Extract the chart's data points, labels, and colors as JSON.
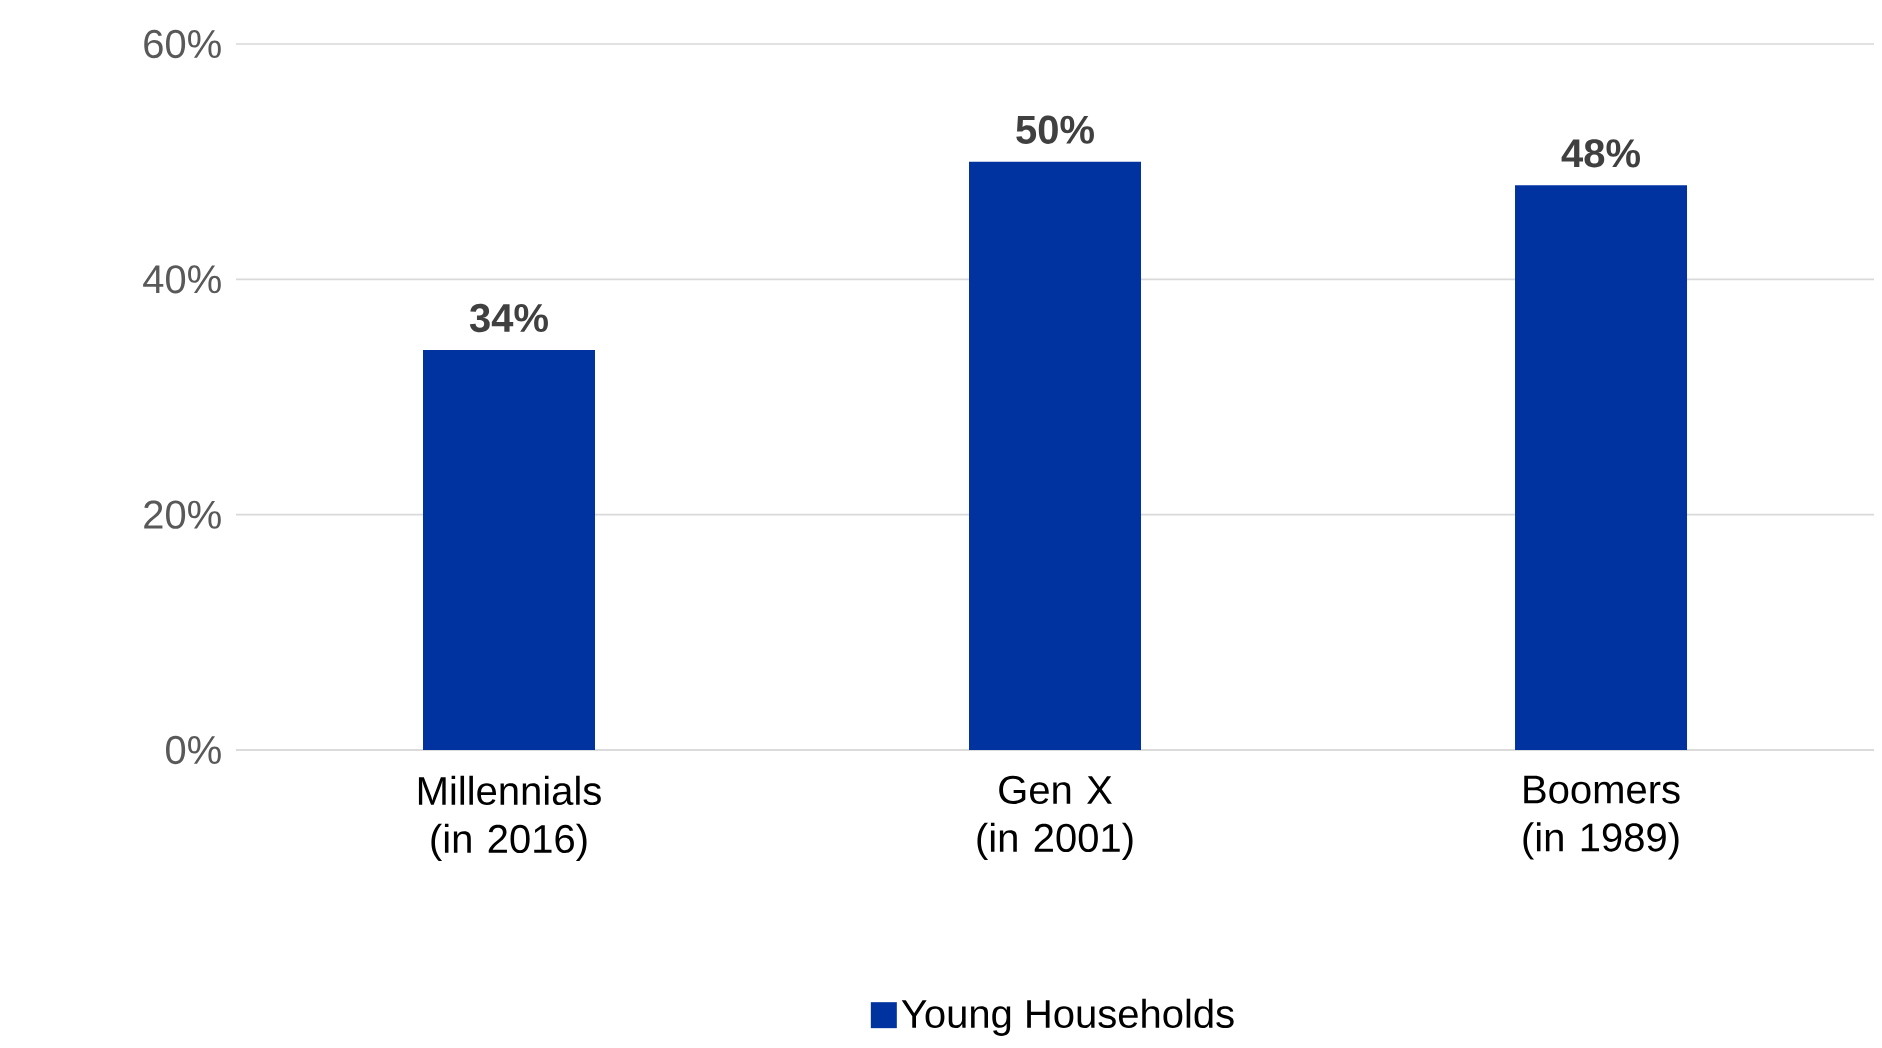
{
  "chart_data": {
    "type": "bar",
    "categories": [
      "Millennials (in 2016)",
      "Gen X (in 2001)",
      "Boomers (in 1989)"
    ],
    "series": [
      {
        "name": "Young Households",
        "color": "#0033a0",
        "values": [
          34,
          50,
          48
        ],
        "value_labels": [
          "34%",
          "50%",
          "48%"
        ]
      }
    ],
    "ylim": [
      0,
      60
    ],
    "yticks": [
      {
        "value": 0,
        "label": "0%"
      },
      {
        "value": 20,
        "label": "20%"
      },
      {
        "value": 40,
        "label": "40%"
      },
      {
        "value": 60,
        "label": "60%"
      }
    ],
    "grid": "y",
    "legend": "bottom"
  }
}
